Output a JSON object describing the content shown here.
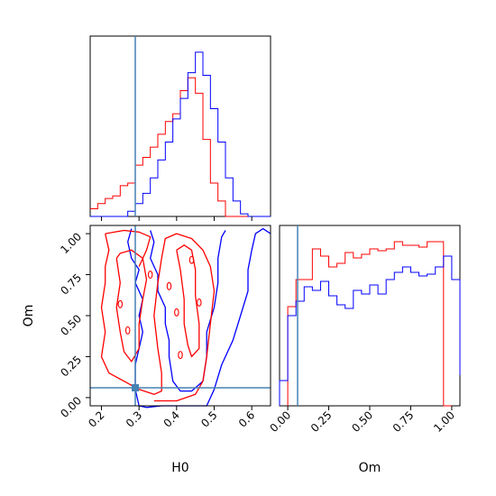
{
  "chart_data": {
    "type": "corner",
    "parameters": [
      "H0",
      "Om"
    ],
    "truth": {
      "H0": 0.29,
      "Om": 0.06
    },
    "colors": {
      "red": "#ff0000",
      "blue": "#0000ff",
      "truth": "#4682b4"
    },
    "hist_H0": {
      "xlim": [
        0.17,
        0.65
      ],
      "grid": false,
      "red": {
        "edges": [
          0.17,
          0.19,
          0.21,
          0.23,
          0.25,
          0.27,
          0.29,
          0.31,
          0.33,
          0.35,
          0.37,
          0.39,
          0.41,
          0.43,
          0.45,
          0.47,
          0.49,
          0.51,
          0.53,
          0.55,
          0.57,
          0.59,
          0.61,
          0.63,
          0.65
        ],
        "counts": [
          3,
          5,
          7,
          8,
          12,
          13,
          20,
          23,
          27,
          32,
          37,
          40,
          49,
          54,
          48,
          30,
          13,
          6,
          0,
          0,
          0,
          0,
          0,
          0
        ]
      },
      "blue": {
        "edges": [
          0.17,
          0.19,
          0.21,
          0.23,
          0.25,
          0.27,
          0.29,
          0.31,
          0.33,
          0.35,
          0.37,
          0.39,
          0.41,
          0.43,
          0.45,
          0.47,
          0.49,
          0.51,
          0.53,
          0.55,
          0.57,
          0.59,
          0.61,
          0.63,
          0.65
        ],
        "counts": [
          0,
          0,
          0,
          0,
          0,
          2,
          5,
          9,
          15,
          22,
          29,
          38,
          46,
          56,
          64,
          55,
          42,
          29,
          15,
          6,
          1,
          0,
          0,
          0
        ]
      }
    },
    "contour_H0_Om": {
      "xlabel": "H0",
      "ylabel": "Om",
      "xlim": [
        0.17,
        0.65
      ],
      "ylim": [
        -0.05,
        1.05
      ],
      "xticks": [
        "0.2",
        "0.3",
        "0.4",
        "0.5",
        "0.6"
      ],
      "yticks": [
        "0.00",
        "0.25",
        "0.50",
        "0.75",
        "1.00"
      ],
      "grid": false
    },
    "hist_Om": {
      "xlabel": "Om",
      "xlim": [
        -0.05,
        1.05
      ],
      "xticks": [
        "0.00",
        "0.25",
        "0.50",
        "0.75",
        "1.00"
      ],
      "grid": false,
      "red": {
        "edges": [
          0,
          0.05,
          0.1,
          0.15,
          0.2,
          0.25,
          0.3,
          0.35,
          0.4,
          0.45,
          0.5,
          0.55,
          0.6,
          0.65,
          0.7,
          0.75,
          0.8,
          0.85,
          0.9,
          0.95,
          1.0
        ],
        "counts": [
          55,
          70,
          70,
          87,
          83,
          77,
          79,
          85,
          82,
          84,
          87,
          86,
          87,
          91,
          89,
          89,
          88,
          91,
          91,
          0
        ]
      },
      "blue": {
        "edges": [
          -0.05,
          0.0,
          0.05,
          0.1,
          0.15,
          0.2,
          0.25,
          0.3,
          0.35,
          0.4,
          0.45,
          0.5,
          0.55,
          0.6,
          0.65,
          0.7,
          0.75,
          0.8,
          0.85,
          0.9,
          0.95,
          1.0,
          1.05
        ],
        "counts": [
          14,
          50,
          58,
          66,
          64,
          69,
          61,
          56,
          54,
          64,
          62,
          67,
          62,
          70,
          74,
          77,
          74,
          72,
          73,
          77,
          83,
          70,
          17
        ]
      }
    }
  }
}
